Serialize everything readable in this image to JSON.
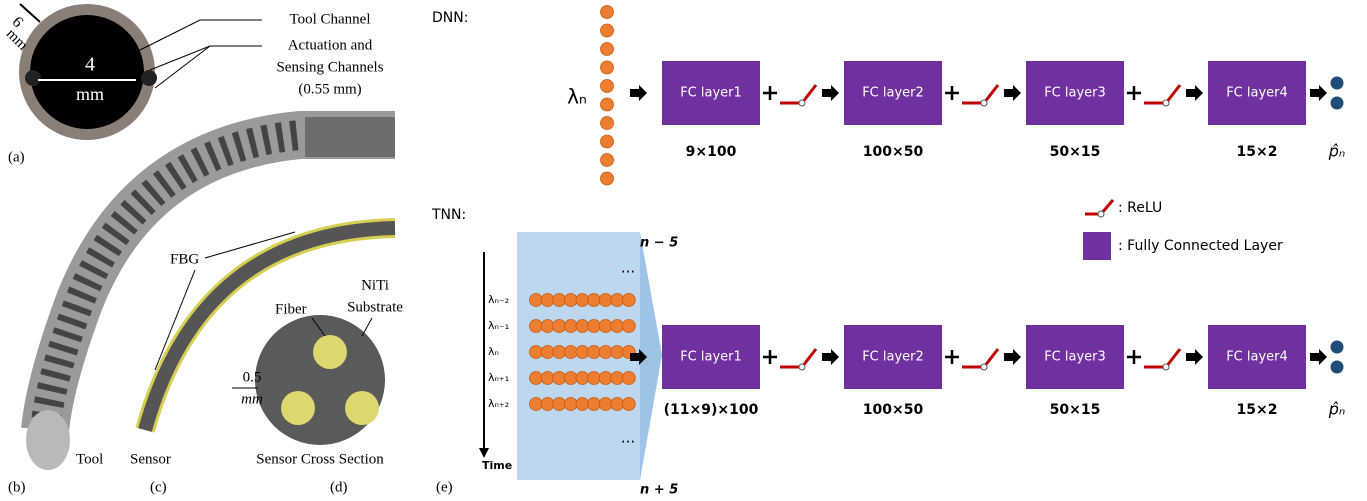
{
  "panel_a": {
    "label": "(a)",
    "outer_diameter": "6",
    "outer_unit": "mm",
    "inner_diameter": "4",
    "inner_unit": "mm",
    "tool_channel": "Tool Channel",
    "actuation_lines": [
      "Actuation and",
      "Sensing Channels",
      "(0.55 mm)"
    ]
  },
  "panel_b": {
    "label": "(b)",
    "tool": "Tool"
  },
  "panel_c": {
    "label": "(c)",
    "sensor": "Sensor",
    "fbg": "FBG"
  },
  "panel_d": {
    "label": "(d)",
    "substrate_lines": [
      "NiTi",
      "Substrate"
    ],
    "fiber": "Fiber",
    "thickness": "0.5",
    "thickness_unit": "mm",
    "caption": "Sensor Cross Section"
  },
  "panel_e": {
    "label": "(e)",
    "dnn": {
      "title": "DNN:",
      "input": "λₙ",
      "layers": [
        "FC layer1",
        "FC layer2",
        "FC layer3",
        "FC layer4"
      ],
      "sizes": [
        "9×100",
        "100×50",
        "50×15",
        "15×2"
      ],
      "output": "p̂ₙ"
    },
    "tnn": {
      "title": "TNN:",
      "top": "n − 5",
      "bottom": "n + 5",
      "ellipsis": "...",
      "time": "Time",
      "inputs": [
        "λₙ₋₂",
        "λₙ₋₁",
        "λₙ",
        "λₙ₊₁",
        "λₙ₊₂"
      ],
      "layers": [
        "FC layer1",
        "FC layer2",
        "FC layer3",
        "FC layer4"
      ],
      "sizes": [
        "(11×9)×100",
        "100×50",
        "50×15",
        "15×2"
      ],
      "output": "p̂ₙ"
    },
    "legend": {
      "relu": ": ReLU",
      "fc": ": Fully Connected Layer"
    }
  }
}
